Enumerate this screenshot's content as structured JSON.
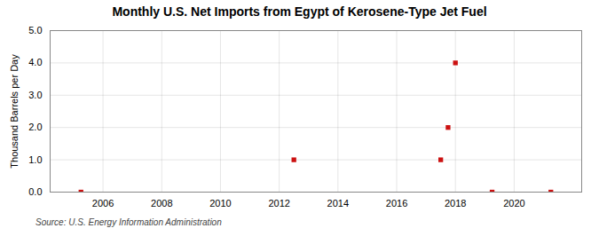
{
  "chart_data": {
    "type": "scatter",
    "title": "Monthly U.S. Net Imports from Egypt of Kerosene-Type Jet Fuel",
    "ylabel": "Thousand Barrels per Day",
    "source": "Source: U.S. Energy Information Administration",
    "x": [
      2005.25,
      2012.5,
      2017.5,
      2017.75,
      2018.0,
      2019.25,
      2021.25
    ],
    "values": [
      0.0,
      1.0,
      1.0,
      2.0,
      4.0,
      0.0,
      0.0
    ],
    "color": "#cc1111",
    "marker": "square",
    "xlim": [
      2004.2,
      2022.3
    ],
    "xticks": [
      2006,
      2008,
      2010,
      2012,
      2014,
      2016,
      2018,
      2020
    ],
    "ylim": [
      0.0,
      5.0
    ],
    "yticks": [
      {
        "value": 0,
        "label": "0.0"
      },
      {
        "value": 1,
        "label": "1.0"
      },
      {
        "value": 2,
        "label": "2.0"
      },
      {
        "value": 3,
        "label": "3.0"
      },
      {
        "value": 4,
        "label": "4.0"
      },
      {
        "value": 5,
        "label": "5.0"
      }
    ],
    "grid": true
  }
}
